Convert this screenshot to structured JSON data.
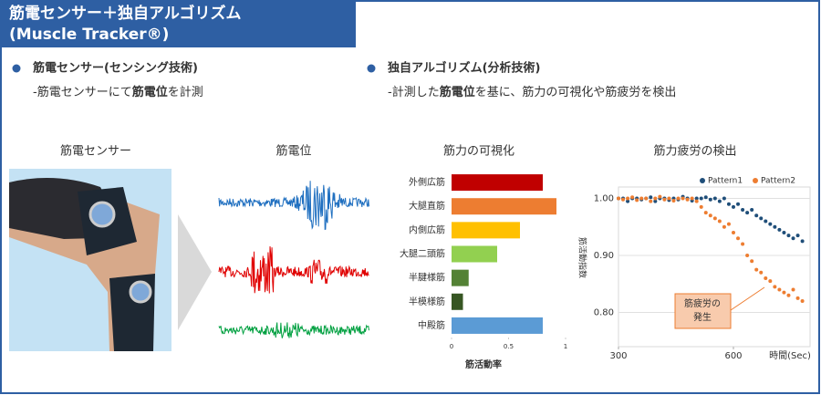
{
  "header": {
    "title": [
      "筋電センサー＋独自アルゴリズム",
      "(Muscle Tracker®)"
    ]
  },
  "bullets": [
    {
      "heading": "筋電センサー(センシング技術)",
      "text": [
        "-筋電センサーにて",
        "筋電位",
        "を計測"
      ]
    },
    {
      "heading": "独自アルゴリズム(分析技術)",
      "text": [
        "-計測した",
        "筋電位",
        "を基に、筋力の可視化や筋疲労を検出"
      ]
    }
  ],
  "panels": [
    "筋電センサー",
    "筋電位"
  ],
  "chart_data": [
    {
      "type": "bar",
      "title": "筋力の可視化",
      "xlabel": "筋活動率",
      "categories": [
        "外側広筋",
        "大腿直筋",
        "内側広筋",
        "大腿二頭筋",
        "半腱様筋",
        "半模様筋",
        "中殿筋"
      ],
      "values": [
        0.8,
        0.92,
        0.6,
        0.4,
        0.15,
        0.1,
        0.8
      ],
      "colors": [
        "#c00000",
        "#ed7d31",
        "#ffc000",
        "#92d050",
        "#548235",
        "#375623",
        "#5b9bd5"
      ],
      "xlim": [
        0,
        1
      ],
      "xticks": [
        0,
        0.5,
        1
      ]
    },
    {
      "type": "scatter",
      "title": "筋力疲労の検出",
      "xlabel": "時間(Sec)",
      "ylabel": "筋活動指数",
      "x": [
        300,
        312,
        324,
        336,
        348,
        360,
        372,
        384,
        396,
        408,
        420,
        432,
        444,
        456,
        468,
        480,
        492,
        504,
        516,
        528,
        540,
        552,
        564,
        576,
        588,
        600,
        612,
        624,
        636,
        648,
        660,
        672,
        684,
        696,
        708,
        720,
        732,
        744,
        756,
        768,
        780
      ],
      "series": [
        {
          "name": "Pattern1",
          "color": "#1f4e79",
          "values": [
            1.0,
            1.0,
            0.995,
            1.0,
            1.0,
            0.998,
            1.0,
            1.002,
            0.995,
            1.0,
            1.0,
            0.997,
            1.0,
            0.998,
            1.003,
            1.0,
            0.996,
            1.0,
            1.0,
            1.002,
            0.998,
            1.0,
            0.995,
            1.0,
            0.99,
            0.985,
            0.99,
            0.98,
            0.975,
            0.98,
            0.97,
            0.965,
            0.96,
            0.955,
            0.95,
            0.945,
            0.94,
            0.935,
            0.93,
            0.935,
            0.925
          ]
        },
        {
          "name": "Pattern2",
          "color": "#ed7d31",
          "values": [
            1.0,
            0.998,
            1.0,
            1.002,
            0.997,
            1.0,
            1.0,
            0.995,
            1.0,
            1.003,
            0.998,
            1.0,
            0.996,
            1.0,
            1.0,
            0.998,
            1.0,
            0.995,
            0.985,
            0.975,
            0.97,
            0.965,
            0.96,
            0.95,
            0.955,
            0.94,
            0.93,
            0.92,
            0.9,
            0.89,
            0.875,
            0.87,
            0.86,
            0.855,
            0.845,
            0.84,
            0.835,
            0.83,
            0.84,
            0.825,
            0.82
          ]
        }
      ],
      "xlim": [
        300,
        800
      ],
      "xticks": [
        300,
        600
      ],
      "ylim": [
        0.74,
        1.02
      ],
      "yticks": [
        {
          "value": 0.8,
          "label": "0.80"
        },
        {
          "value": 0.9,
          "label": "0.90"
        },
        {
          "value": 1.0,
          "label": "1.00"
        }
      ],
      "grid": true,
      "legend": "top-right",
      "annotation": [
        "筋疲労の",
        "発生"
      ]
    }
  ]
}
